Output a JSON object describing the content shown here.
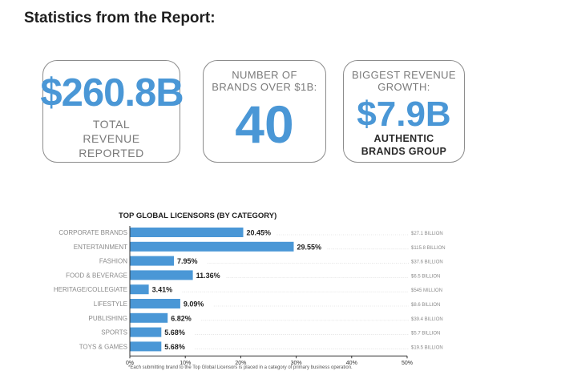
{
  "page": {
    "heading": "Statistics from the Report:"
  },
  "cards": {
    "total_revenue": {
      "value": "$260.8B",
      "caption_lines": [
        "TOTAL",
        "REVENUE",
        "REPORTED"
      ]
    },
    "brands_over_1b": {
      "caption_lines": [
        "NUMBER OF",
        "BRANDS OVER $1B:"
      ],
      "value": "40"
    },
    "biggest_growth": {
      "caption_lines": [
        "BIGGEST REVENUE",
        "GROWTH:"
      ],
      "value": "$7.9B",
      "sub_lines": [
        "AUTHENTIC",
        "BRANDS GROUP"
      ]
    }
  },
  "colors": {
    "accent": "#4a97d6",
    "text": "#1e1e1e",
    "muted": "#7a7a7a"
  },
  "chart_data": {
    "type": "bar",
    "orientation": "horizontal",
    "title": "TOP GLOBAL LICENSORS (BY CATEGORY)",
    "categories": [
      "CORPORATE BRANDS",
      "ENTERTAINMENT",
      "FASHION",
      "FOOD & BEVERAGE",
      "HERITAGE/COLLEGIATE",
      "LIFESTYLE",
      "PUBLISHING",
      "SPORTS",
      "TOYS & GAMES"
    ],
    "values": [
      20.45,
      29.55,
      7.95,
      11.36,
      3.41,
      9.09,
      6.82,
      5.68,
      5.68
    ],
    "value_labels": [
      "20.45%",
      "29.55%",
      "7.95%",
      "11.36%",
      "3.41%",
      "9.09%",
      "6.82%",
      "5.68%",
      "5.68%"
    ],
    "revenue_labels": [
      "$27.1 BILLION",
      "$115.8 BILLION",
      "$37.6 BILLION",
      "$6.5 BILLION",
      "$545 MILLION",
      "$8.6 BILLION",
      "$39.4 BILLION",
      "$5.7 BILLION",
      "$19.5 BILLION"
    ],
    "xlim": [
      0,
      50
    ],
    "xticks": [
      0,
      10,
      20,
      30,
      40,
      50
    ],
    "xtick_labels": [
      "0%",
      "10%",
      "20%",
      "30%",
      "40%",
      "50%"
    ],
    "xlabel": "",
    "ylabel": "",
    "grid": false,
    "footnote": "*Each submitting brand to the Top Global Licensors is placed in a category of primary business operation."
  }
}
